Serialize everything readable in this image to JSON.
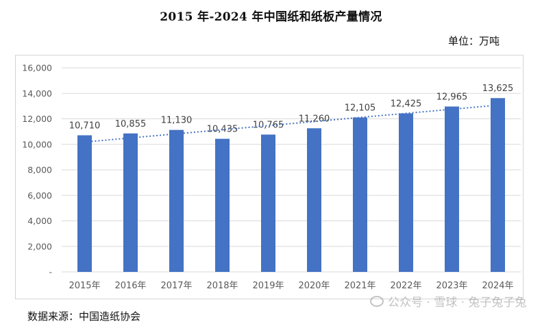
{
  "title": "2015 年-2024 年中国纸和纸板产量情况",
  "unit_label": "单位：万吨",
  "source_label": "数据来源：中国造纸协会",
  "watermark": "公众号 · 雪球 · 兔子兔子兔",
  "colors": {
    "bar": "#4472C4",
    "trendline": "#4472C4",
    "grid": "#d9d9d9",
    "axis_text": "#595959",
    "label_text": "#404040"
  },
  "chart_data": {
    "type": "bar",
    "categories": [
      "2015年",
      "2016年",
      "2017年",
      "2018年",
      "2019年",
      "2020年",
      "2021年",
      "2022年",
      "2023年",
      "2024年"
    ],
    "values": [
      10710,
      10855,
      11130,
      10435,
      10765,
      11260,
      12105,
      12425,
      12965,
      13625
    ],
    "value_labels": [
      "10,710",
      "10,855",
      "11,130",
      "10,435",
      "10,765",
      "11,260",
      "12,105",
      "12,425",
      "12,965",
      "13,625"
    ],
    "ylim": [
      0,
      16000
    ],
    "yticks": [
      0,
      2000,
      4000,
      6000,
      8000,
      10000,
      12000,
      14000,
      16000
    ],
    "ytick_labels": [
      "-",
      "2,000",
      "4,000",
      "6,000",
      "8,000",
      "10,000",
      "12,000",
      "14,000",
      "16,000"
    ],
    "trendline": "linear",
    "grid": true,
    "legend": "none"
  }
}
